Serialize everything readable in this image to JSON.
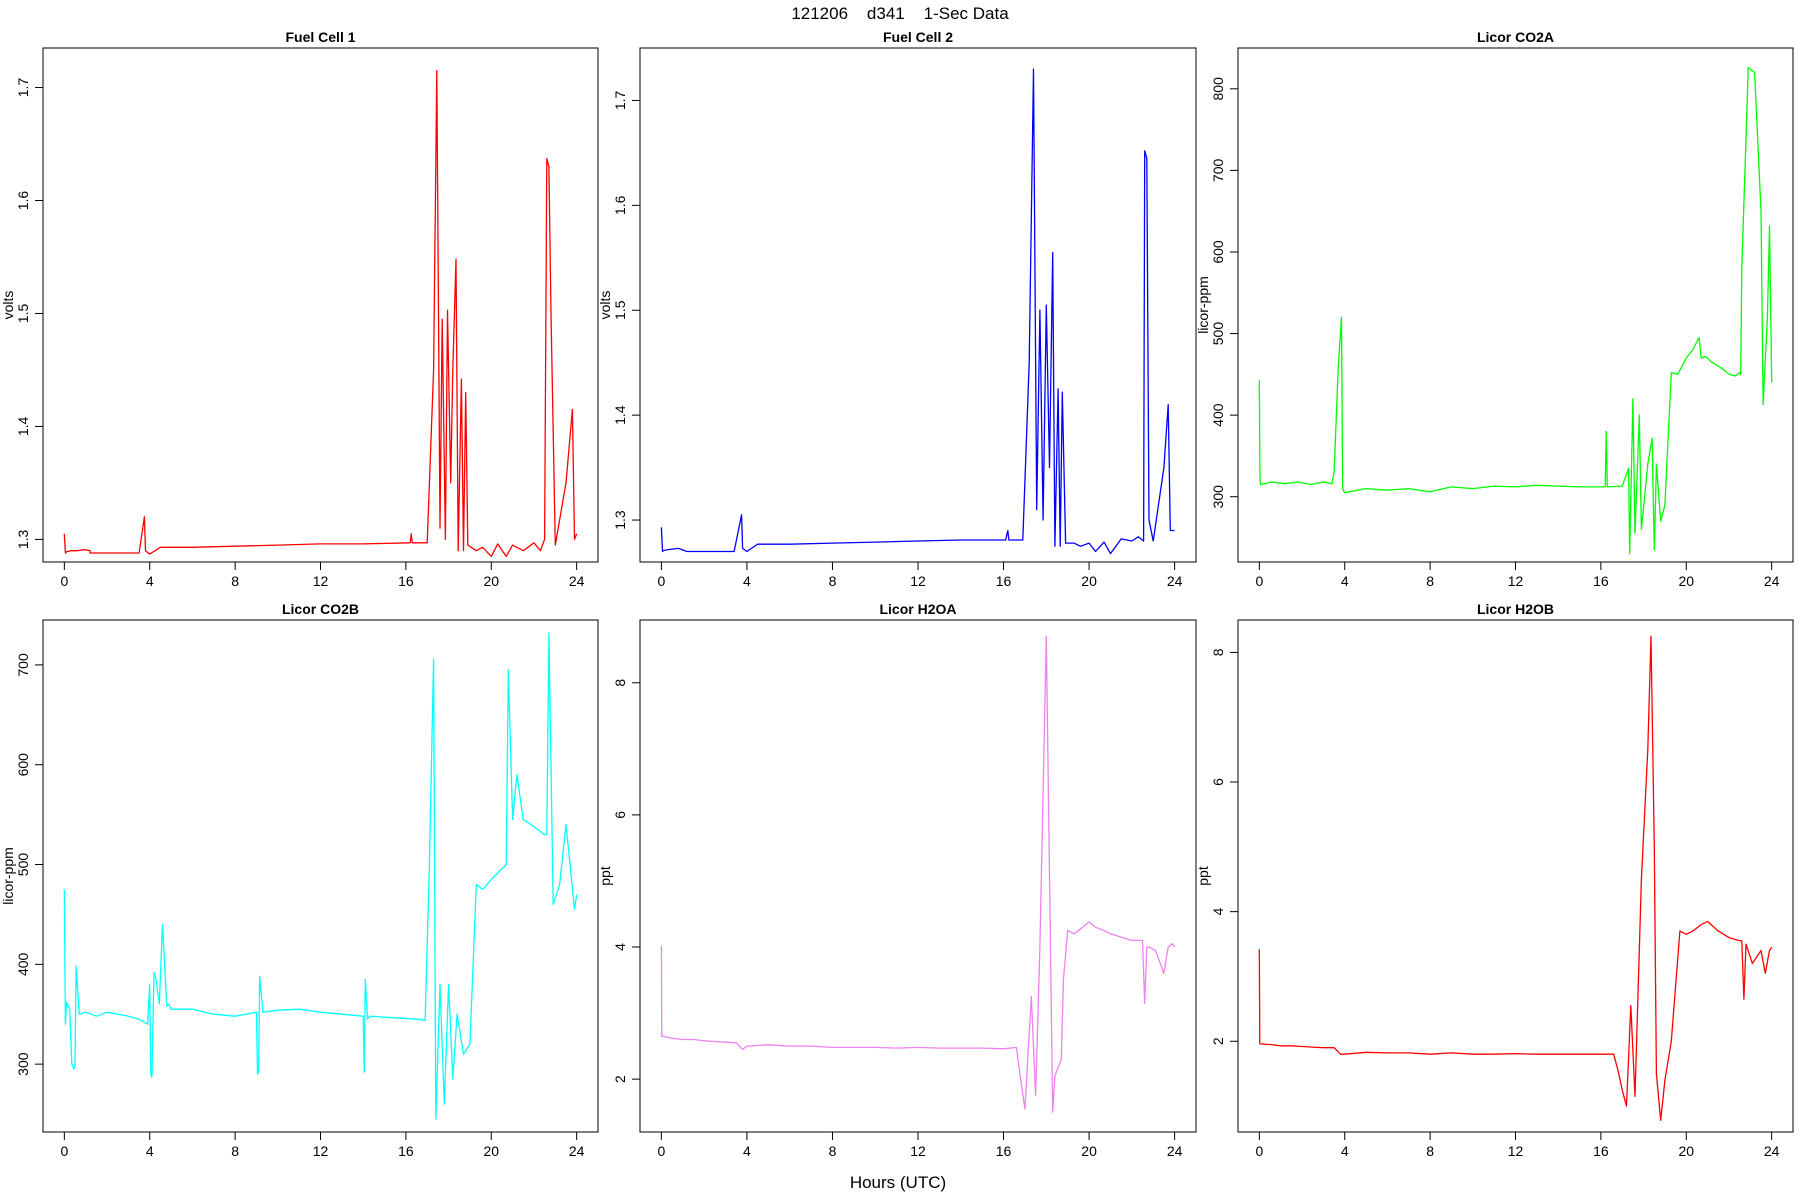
{
  "figure": {
    "title": "121206    d341    1-Sec Data",
    "xlabel": "Hours (UTC)"
  },
  "chart_data": [
    {
      "type": "line",
      "title": "Fuel Cell 1",
      "ylabel": "volts",
      "color": "#ff0000",
      "xlim": [
        -1,
        25
      ],
      "ylim": [
        1.28,
        1.735
      ],
      "xticks": [
        0,
        4,
        8,
        12,
        16,
        20,
        24
      ],
      "yticks": [
        1.3,
        1.4,
        1.5,
        1.6,
        1.7
      ],
      "ytick_labels": [
        "1.3",
        "1.4",
        "1.5",
        "1.6",
        "1.7"
      ],
      "x": [
        0,
        0.05,
        0.1,
        0.3,
        0.6,
        0.9,
        1.2,
        1.2,
        2.5,
        3.5,
        3.75,
        3.8,
        4.0,
        4.5,
        6,
        8,
        10,
        12,
        14,
        16.2,
        16.25,
        16.3,
        17.0,
        17.3,
        17.45,
        17.6,
        17.7,
        17.85,
        17.95,
        18.1,
        18.2,
        18.35,
        18.45,
        18.6,
        18.7,
        18.8,
        18.9,
        19.3,
        19.6,
        20.0,
        20.3,
        20.7,
        21.0,
        21.5,
        22.0,
        22.3,
        22.5,
        22.6,
        22.7,
        22.8,
        23.0,
        23.5,
        23.8,
        23.9,
        24.0
      ],
      "y": [
        1.305,
        1.288,
        1.289,
        1.29,
        1.29,
        1.291,
        1.29,
        1.288,
        1.288,
        1.288,
        1.32,
        1.29,
        1.287,
        1.293,
        1.293,
        1.294,
        1.295,
        1.296,
        1.296,
        1.297,
        1.305,
        1.297,
        1.297,
        1.45,
        1.715,
        1.31,
        1.495,
        1.3,
        1.503,
        1.35,
        1.45,
        1.548,
        1.29,
        1.442,
        1.29,
        1.43,
        1.295,
        1.29,
        1.293,
        1.285,
        1.296,
        1.285,
        1.295,
        1.29,
        1.297,
        1.29,
        1.3,
        1.637,
        1.63,
        1.5,
        1.295,
        1.35,
        1.415,
        1.3,
        1.305
      ]
    },
    {
      "type": "line",
      "title": "Fuel Cell 2",
      "ylabel": "volts",
      "color": "#0000ff",
      "xlim": [
        -1,
        25
      ],
      "ylim": [
        1.26,
        1.75
      ],
      "xticks": [
        0,
        4,
        8,
        12,
        16,
        20,
        24
      ],
      "yticks": [
        1.3,
        1.4,
        1.5,
        1.6,
        1.7
      ],
      "ytick_labels": [
        "1.3",
        "1.4",
        "1.5",
        "1.6",
        "1.7"
      ],
      "x": [
        0,
        0.05,
        0.1,
        0.4,
        0.8,
        1.2,
        1.2,
        2.5,
        3.4,
        3.75,
        3.8,
        4.0,
        4.5,
        6,
        8,
        10,
        12,
        14,
        16.1,
        16.2,
        16.25,
        16.5,
        16.9,
        17.2,
        17.4,
        17.55,
        17.7,
        17.85,
        18.0,
        18.15,
        18.3,
        18.4,
        18.55,
        18.65,
        18.75,
        18.9,
        19.3,
        19.6,
        20.0,
        20.3,
        20.7,
        21.0,
        21.5,
        22.0,
        22.3,
        22.55,
        22.6,
        22.7,
        22.8,
        23.0,
        23.5,
        23.7,
        23.8,
        24.0
      ],
      "y": [
        1.293,
        1.27,
        1.271,
        1.272,
        1.273,
        1.27,
        1.27,
        1.27,
        1.27,
        1.305,
        1.273,
        1.27,
        1.277,
        1.277,
        1.278,
        1.279,
        1.28,
        1.281,
        1.281,
        1.29,
        1.281,
        1.281,
        1.281,
        1.45,
        1.73,
        1.31,
        1.5,
        1.3,
        1.505,
        1.35,
        1.555,
        1.275,
        1.425,
        1.275,
        1.422,
        1.278,
        1.278,
        1.275,
        1.278,
        1.27,
        1.279,
        1.268,
        1.282,
        1.28,
        1.284,
        1.28,
        1.652,
        1.645,
        1.3,
        1.28,
        1.35,
        1.41,
        1.29,
        1.29
      ]
    },
    {
      "type": "line",
      "title": "Licor CO2A",
      "ylabel": "licor-ppm",
      "color": "#00ff00",
      "xlim": [
        -1,
        25
      ],
      "ylim": [
        220,
        850
      ],
      "xticks": [
        0,
        4,
        8,
        12,
        16,
        20,
        24
      ],
      "yticks": [
        300,
        400,
        500,
        600,
        700,
        800
      ],
      "ytick_labels": [
        "300",
        "400",
        "500",
        "600",
        "700",
        "800"
      ],
      "x": [
        0,
        0.03,
        0.06,
        0.6,
        1.2,
        1.8,
        2.4,
        3.0,
        3.4,
        3.5,
        3.7,
        3.85,
        3.9,
        4.0,
        5,
        6,
        7,
        8,
        9,
        10,
        11,
        12,
        13,
        14,
        15,
        16.2,
        16.25,
        16.3,
        17.0,
        17.3,
        17.35,
        17.5,
        17.6,
        17.8,
        17.9,
        18.2,
        18.4,
        18.5,
        18.6,
        18.8,
        19.0,
        19.3,
        19.6,
        20.0,
        20.3,
        20.6,
        20.7,
        20.9,
        21.2,
        21.5,
        21.8,
        22.0,
        22.3,
        22.5,
        22.55,
        22.6,
        22.7,
        22.85,
        22.9,
        23.2,
        23.5,
        23.6,
        23.8,
        23.9,
        24.0
      ],
      "y": [
        443,
        320,
        315,
        318,
        316,
        318,
        315,
        318,
        316,
        330,
        460,
        520,
        310,
        305,
        310,
        308,
        310,
        306,
        312,
        310,
        313,
        312,
        314,
        313,
        312,
        312,
        380,
        312,
        313,
        335,
        230,
        420,
        255,
        400,
        260,
        340,
        372,
        235,
        340,
        270,
        290,
        452,
        450,
        470,
        480,
        495,
        470,
        472,
        465,
        460,
        455,
        450,
        448,
        452,
        450,
        580,
        660,
        780,
        826,
        820,
        650,
        413,
        520,
        632,
        440
      ]
    },
    {
      "type": "line",
      "title": "Licor CO2B",
      "ylabel": "licor-ppm",
      "color": "#00ffff",
      "xlim": [
        -1,
        25
      ],
      "ylim": [
        232,
        745
      ],
      "xticks": [
        0,
        4,
        8,
        12,
        16,
        20,
        24
      ],
      "yticks": [
        300,
        400,
        500,
        600,
        700
      ],
      "ytick_labels": [
        "300",
        "400",
        "500",
        "600",
        "700"
      ],
      "x": [
        0,
        0.05,
        0.1,
        0.25,
        0.35,
        0.45,
        0.5,
        0.55,
        0.7,
        1.0,
        1.5,
        2.0,
        2.5,
        3.0,
        3.5,
        3.9,
        4.0,
        4.05,
        4.1,
        4.2,
        4.3,
        4.45,
        4.6,
        4.8,
        4.9,
        5.0,
        6,
        7,
        8,
        9.0,
        9.05,
        9.1,
        9.15,
        9.3,
        10,
        11,
        12,
        13,
        14.0,
        14.05,
        14.1,
        14.2,
        14.3,
        15,
        16.5,
        16.9,
        17.1,
        17.3,
        17.4,
        17.6,
        17.8,
        18.0,
        18.2,
        18.4,
        18.7,
        19.0,
        19.3,
        19.6,
        20.0,
        20.7,
        20.8,
        21.0,
        21.2,
        21.5,
        22.0,
        22.5,
        22.6,
        22.7,
        22.9,
        23.2,
        23.5,
        23.9,
        24.0
      ],
      "y": [
        475,
        340,
        362,
        355,
        300,
        295,
        298,
        398,
        350,
        352,
        348,
        352,
        350,
        348,
        345,
        340,
        380,
        290,
        287,
        392,
        385,
        360,
        440,
        358,
        360,
        355,
        355,
        350,
        348,
        352,
        290,
        292,
        388,
        352,
        354,
        355,
        352,
        350,
        348,
        292,
        385,
        345,
        348,
        347,
        345,
        344,
        500,
        706,
        245,
        380,
        260,
        380,
        285,
        350,
        310,
        320,
        480,
        475,
        485,
        500,
        695,
        545,
        590,
        545,
        538,
        530,
        530,
        732,
        460,
        480,
        540,
        455,
        470
      ]
    },
    {
      "type": "line",
      "title": "Licor H2OA",
      "ylabel": "ppt",
      "color": "#ee82ee",
      "xlim": [
        -1,
        25
      ],
      "ylim": [
        1.2,
        8.95
      ],
      "xticks": [
        0,
        4,
        8,
        12,
        16,
        20,
        24
      ],
      "yticks": [
        2,
        4,
        6,
        8
      ],
      "ytick_labels": [
        "2",
        "4",
        "6",
        "8"
      ],
      "x": [
        0,
        0.02,
        0.05,
        0.5,
        1.0,
        1.5,
        2.0,
        2.5,
        3.0,
        3.5,
        3.8,
        4.0,
        5,
        6,
        7,
        8,
        9,
        10,
        11,
        12,
        13,
        14,
        15,
        16.0,
        16.6,
        16.8,
        17.0,
        17.3,
        17.5,
        17.7,
        18.0,
        18.3,
        18.4,
        18.7,
        18.8,
        19.0,
        19.3,
        19.7,
        20.0,
        20.3,
        20.7,
        21.0,
        21.5,
        22.0,
        22.5,
        22.6,
        22.7,
        22.8,
        23.1,
        23.5,
        23.7,
        23.9,
        24.0
      ],
      "y": [
        4.02,
        2.65,
        2.65,
        2.62,
        2.6,
        2.6,
        2.58,
        2.57,
        2.56,
        2.55,
        2.45,
        2.5,
        2.52,
        2.5,
        2.5,
        2.48,
        2.48,
        2.48,
        2.47,
        2.48,
        2.47,
        2.47,
        2.47,
        2.46,
        2.48,
        2.0,
        1.55,
        3.25,
        1.75,
        4.0,
        8.7,
        1.5,
        2.05,
        2.3,
        3.5,
        4.25,
        4.2,
        4.3,
        4.38,
        4.3,
        4.25,
        4.2,
        4.15,
        4.1,
        4.1,
        3.15,
        4.0,
        4.0,
        3.95,
        3.6,
        4.0,
        4.05,
        4.0
      ]
    },
    {
      "type": "line",
      "title": "Licor H2OB",
      "ylabel": "ppt",
      "color": "#ff0000",
      "xlim": [
        -1,
        25
      ],
      "ylim": [
        0.6,
        8.5
      ],
      "xticks": [
        0,
        4,
        8,
        12,
        16,
        20,
        24
      ],
      "yticks": [
        2,
        4,
        6,
        8
      ],
      "ytick_labels": [
        "2",
        "4",
        "6",
        "8"
      ],
      "x": [
        0,
        0.02,
        0.05,
        0.5,
        1.0,
        1.5,
        2.0,
        2.5,
        3.0,
        3.5,
        3.8,
        4.0,
        5,
        6,
        7,
        8,
        9,
        10,
        11,
        12,
        13,
        14,
        15,
        16.0,
        16.6,
        16.8,
        17.0,
        17.2,
        17.4,
        17.6,
        17.9,
        18.2,
        18.35,
        18.5,
        18.6,
        18.8,
        19.0,
        19.3,
        19.7,
        20.0,
        20.3,
        20.7,
        21.0,
        21.5,
        22.0,
        22.5,
        22.6,
        22.7,
        22.8,
        23.1,
        23.5,
        23.7,
        23.9,
        24.0
      ],
      "y": [
        3.42,
        1.97,
        1.96,
        1.95,
        1.93,
        1.93,
        1.92,
        1.91,
        1.9,
        1.9,
        1.8,
        1.8,
        1.83,
        1.82,
        1.82,
        1.8,
        1.82,
        1.8,
        1.8,
        1.81,
        1.8,
        1.8,
        1.8,
        1.8,
        1.8,
        1.55,
        1.25,
        1.0,
        2.55,
        1.15,
        4.5,
        6.5,
        8.25,
        5.0,
        1.5,
        0.78,
        1.4,
        2.0,
        3.7,
        3.65,
        3.7,
        3.8,
        3.85,
        3.7,
        3.6,
        3.55,
        3.55,
        2.65,
        3.5,
        3.2,
        3.4,
        3.05,
        3.4,
        3.45
      ]
    }
  ]
}
